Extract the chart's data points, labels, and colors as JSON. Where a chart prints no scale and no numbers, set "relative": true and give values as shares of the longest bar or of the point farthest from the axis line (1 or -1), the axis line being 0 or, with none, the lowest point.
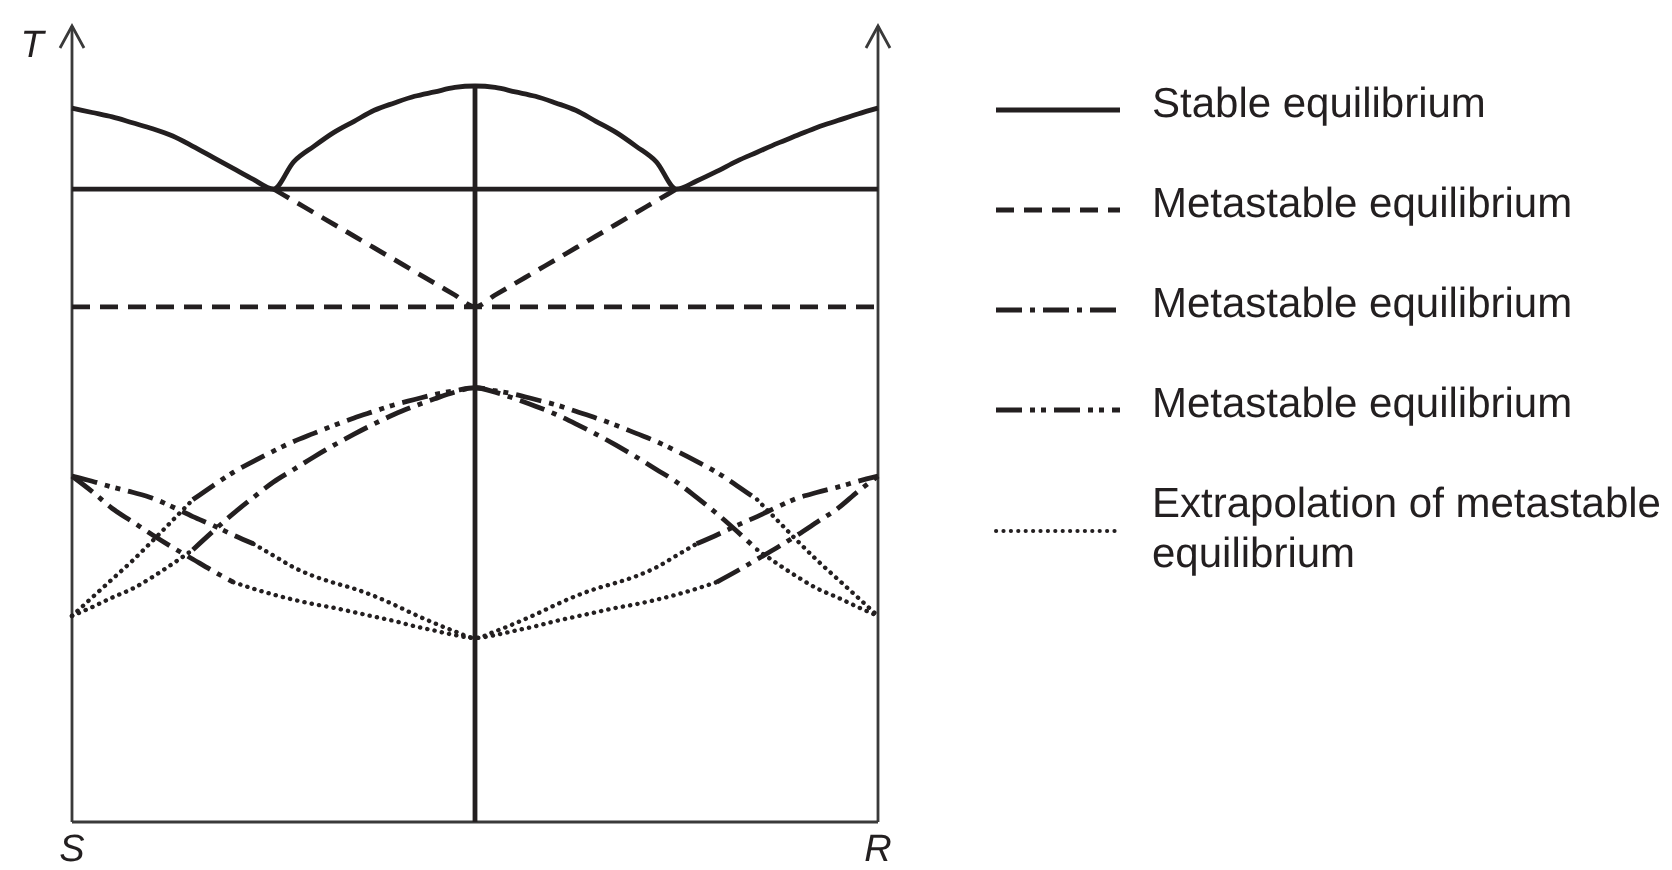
{
  "chart_data": {
    "type": "line",
    "relative": true,
    "ylabel": "T",
    "legend": "right",
    "categories": [
      "S",
      null,
      null,
      null,
      null,
      null,
      null,
      null,
      null,
      null,
      null,
      null,
      null,
      null,
      null,
      null,
      null,
      null,
      null,
      null,
      null,
      null,
      null,
      null,
      null,
      null,
      null,
      null,
      null,
      null,
      null,
      null,
      null,
      null,
      null,
      null,
      null,
      null,
      null,
      null,
      "R"
    ],
    "series": [
      {
        "name": "Stable equilibrium",
        "color": "#231f20",
        "line_style": "solid",
        "values": [
          0.97,
          0.964,
          0.958,
          0.95,
          0.942,
          0.932,
          0.918,
          0.903,
          0.888,
          0.873,
          0.86,
          0.897,
          0.918,
          0.937,
          0.952,
          0.967,
          0.977,
          0.986,
          0.992,
          0.998,
          1,
          0.998,
          0.992,
          0.986,
          0.977,
          0.967,
          0.952,
          0.937,
          0.918,
          0.897,
          0.86,
          0.871,
          0.884,
          0.898,
          0.91,
          0.922,
          0.933,
          0.944,
          0.953,
          0.962,
          0.97
        ]
      },
      {
        "color": "#231f20",
        "line_style": "solid",
        "values": [
          0.86,
          0.86,
          0.86,
          0.86,
          0.86,
          0.86,
          0.86,
          0.86,
          0.86,
          0.86,
          0.86,
          0.86,
          0.86,
          0.86,
          0.86,
          0.86,
          0.86,
          0.86,
          0.86,
          0.86,
          0.86,
          0.86,
          0.86,
          0.86,
          0.86,
          0.86,
          0.86,
          0.86,
          0.86,
          0.86,
          0.86,
          0.86,
          0.86,
          0.86,
          0.86,
          0.86,
          0.86,
          0.86,
          0.86,
          0.86,
          0.86
        ]
      },
      {
        "type": "bar",
        "color": "#231f20",
        "values": [
          null,
          null,
          null,
          null,
          null,
          null,
          null,
          null,
          null,
          null,
          null,
          null,
          null,
          null,
          null,
          null,
          null,
          null,
          null,
          null,
          1,
          null,
          null,
          null,
          null,
          null,
          null,
          null,
          null,
          null,
          null,
          null,
          null,
          null,
          null,
          null,
          null,
          null,
          null,
          null,
          null
        ]
      },
      {
        "name": "Metastable equilibrium",
        "color": "#231f20",
        "line_style": "dashed",
        "values": [
          null,
          null,
          null,
          null,
          null,
          null,
          null,
          null,
          null,
          null,
          0.86,
          0.844,
          0.828,
          0.812,
          0.796,
          0.78,
          0.764,
          0.748,
          0.732,
          0.716,
          0.7,
          0.716,
          0.732,
          0.748,
          0.764,
          0.78,
          0.796,
          0.812,
          0.828,
          0.844,
          0.86,
          null,
          null,
          null,
          null,
          null,
          null,
          null,
          null,
          null,
          null
        ]
      },
      {
        "color": "#231f20",
        "line_style": "dashed",
        "values": [
          0.7,
          0.7,
          0.7,
          0.7,
          0.7,
          0.7,
          0.7,
          0.7,
          0.7,
          0.7,
          0.7,
          0.7,
          0.7,
          0.7,
          0.7,
          0.7,
          0.7,
          0.7,
          0.7,
          0.7,
          0.7,
          0.7,
          0.7,
          0.7,
          0.7,
          0.7,
          0.7,
          0.7,
          0.7,
          0.7,
          0.7,
          0.7,
          0.7,
          0.7,
          0.7,
          0.7,
          0.7,
          0.7,
          0.7,
          0.7,
          0.7
        ]
      },
      {
        "name": "Metastable equilibrium",
        "color": "#231f20",
        "line_style": "dashdot",
        "values": [
          null,
          null,
          null,
          null,
          null,
          null,
          0.37,
          0.395,
          0.419,
          0.441,
          0.462,
          0.479,
          0.496,
          0.512,
          0.527,
          0.541,
          0.554,
          0.565,
          0.575,
          0.584,
          0.59,
          0.584,
          0.575,
          0.565,
          0.554,
          0.541,
          0.527,
          0.512,
          0.496,
          0.479,
          0.462,
          0.441,
          0.419,
          0.395,
          0.37,
          null,
          null,
          null,
          null,
          null,
          null
        ]
      },
      {
        "color": "#231f20",
        "line_style": "dashdot",
        "values": [
          0.47,
          0.449,
          0.426,
          0.408,
          0.39,
          0.373,
          0.357,
          0.341,
          0.326,
          null,
          null,
          null,
          null,
          null,
          null,
          null,
          null,
          null,
          null,
          null,
          null,
          null,
          null,
          null,
          null,
          null,
          null,
          null,
          null,
          null,
          null,
          null,
          0.326,
          0.341,
          0.357,
          0.373,
          0.39,
          0.408,
          0.426,
          0.449,
          0.47
        ]
      },
      {
        "name": "Metastable equilibrium",
        "color": "#231f20",
        "line_style": "dashdotdot",
        "values": [
          null,
          null,
          null,
          null,
          null,
          null,
          0.438,
          0.457,
          0.475,
          0.49,
          0.504,
          0.517,
          0.528,
          0.539,
          0.549,
          0.558,
          0.567,
          0.574,
          0.581,
          0.586,
          0.59,
          0.586,
          0.581,
          0.574,
          0.567,
          0.558,
          0.549,
          0.539,
          0.528,
          0.517,
          0.504,
          0.49,
          0.475,
          0.457,
          0.438,
          null,
          null,
          null,
          null,
          null,
          null
        ]
      },
      {
        "color": "#231f20",
        "line_style": "dashdotdot",
        "values": [
          0.47,
          0.463,
          0.455,
          0.448,
          0.44,
          0.428,
          0.415,
          0.403,
          0.39,
          0.378,
          null,
          null,
          null,
          null,
          null,
          null,
          null,
          null,
          null,
          null,
          null,
          null,
          null,
          null,
          null,
          null,
          null,
          null,
          null,
          null,
          null,
          0.378,
          0.39,
          0.403,
          0.415,
          0.428,
          0.44,
          0.448,
          0.455,
          0.463,
          0.47
        ]
      },
      {
        "name": "Extrapolation of metastable equilibrium",
        "color": "#231f20",
        "line_style": "dotted",
        "values": [
          0.28,
          0.305,
          0.33,
          0.355,
          0.382,
          0.41,
          0.438,
          null,
          null,
          0.378,
          0.362,
          0.346,
          0.334,
          0.325,
          0.317,
          0.307,
          0.295,
          0.282,
          0.27,
          0.259,
          0.25,
          0.259,
          0.27,
          0.282,
          0.295,
          0.307,
          0.317,
          0.325,
          0.334,
          0.346,
          0.362,
          0.378,
          null,
          null,
          0.438,
          0.41,
          0.382,
          0.355,
          0.33,
          0.305,
          0.28
        ]
      },
      {
        "color": "#231f20",
        "line_style": "dotted",
        "values": [
          0.28,
          0.292,
          0.305,
          0.317,
          0.333,
          0.351,
          0.37,
          null,
          0.326,
          0.317,
          0.309,
          0.302,
          0.296,
          0.291,
          0.285,
          0.279,
          0.273,
          0.266,
          0.26,
          0.254,
          0.25,
          0.254,
          0.26,
          0.266,
          0.273,
          0.279,
          0.285,
          0.291,
          0.296,
          0.302,
          0.309,
          0.317,
          0.326,
          null,
          0.37,
          0.351,
          0.333,
          0.317,
          0.305,
          0.292,
          0.28
        ]
      }
    ]
  }
}
